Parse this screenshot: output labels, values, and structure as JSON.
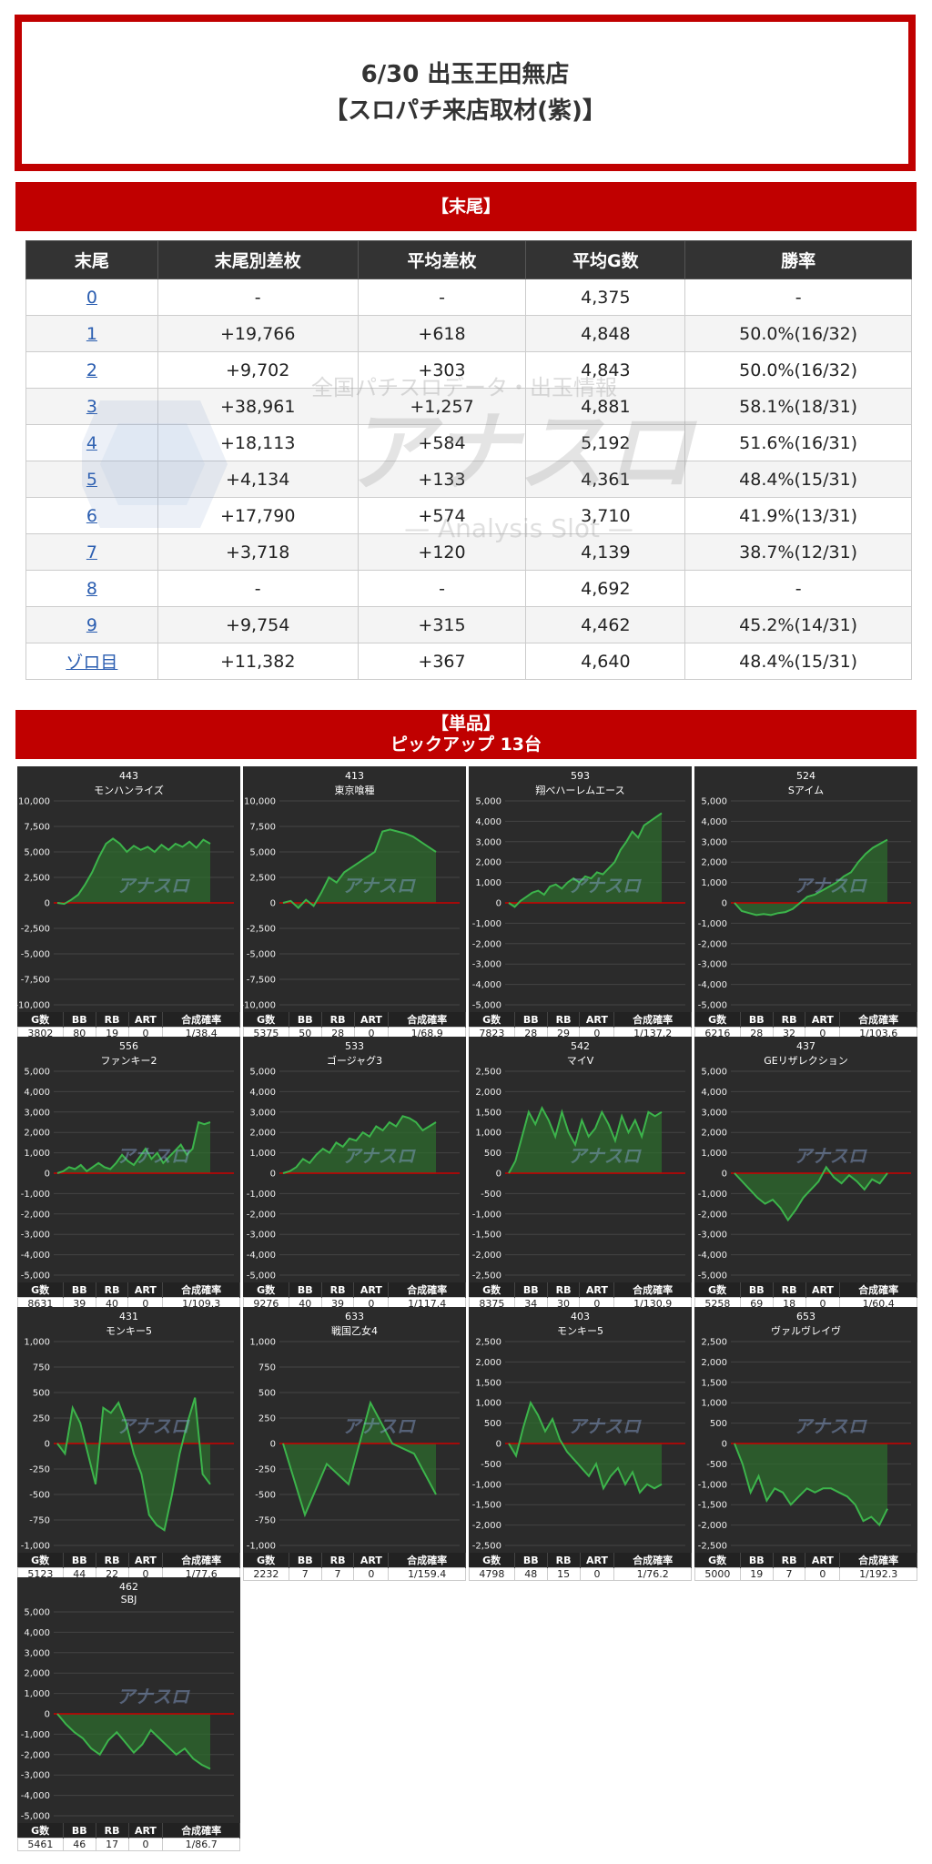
{
  "header": {
    "title_line1": "6/30 出玉王田無店",
    "title_line2": "【スロパチ来店取材(紫)】"
  },
  "section_matsubi": {
    "title": "【末尾】",
    "columns": [
      "末尾",
      "末尾別差枚",
      "平均差枚",
      "平均G数",
      "勝率"
    ],
    "rows": [
      [
        "0",
        "-",
        "-",
        "4,375",
        "-"
      ],
      [
        "1",
        "+19,766",
        "+618",
        "4,848",
        "50.0%(16/32)"
      ],
      [
        "2",
        "+9,702",
        "+303",
        "4,843",
        "50.0%(16/32)"
      ],
      [
        "3",
        "+38,961",
        "+1,257",
        "4,881",
        "58.1%(18/31)"
      ],
      [
        "4",
        "+18,113",
        "+584",
        "5,192",
        "51.6%(16/31)"
      ],
      [
        "5",
        "+4,134",
        "+133",
        "4,361",
        "48.4%(15/31)"
      ],
      [
        "6",
        "+17,790",
        "+574",
        "3,710",
        "41.9%(13/31)"
      ],
      [
        "7",
        "+3,718",
        "+120",
        "4,139",
        "38.7%(12/31)"
      ],
      [
        "8",
        "-",
        "-",
        "4,692",
        "-"
      ],
      [
        "9",
        "+9,754",
        "+315",
        "4,462",
        "45.2%(14/31)"
      ],
      [
        "ゾロ目",
        "+11,382",
        "+367",
        "4,640",
        "48.4%(15/31)"
      ]
    ]
  },
  "watermark": {
    "tagline": "全国パチスロデータ・出玉情報",
    "logo": "アナスロ",
    "sub": "— Analysis Slot —"
  },
  "section_pickup": {
    "title": "【単品】",
    "subtitle": "ピックアップ 13台"
  },
  "colors": {
    "accent": "#c00000",
    "card_bg": "#2b2b2b",
    "line": "#3cb44b",
    "fill": "#2e6b2e",
    "zero_line": "#cc0000"
  },
  "stats_headers": [
    "G数",
    "BB",
    "RB",
    "ART",
    "合成確率"
  ],
  "chart_data": [
    {
      "type": "area",
      "number": "443",
      "name": "モンハンライズ",
      "ylim": [
        -10000,
        10000
      ],
      "ticks": [
        "10,000",
        "7,500",
        "5,000",
        "2,500",
        "0",
        "-2,500",
        "-5,000",
        "-7,500",
        "-10,000"
      ],
      "values": [
        0,
        -100,
        300,
        800,
        1800,
        3000,
        4500,
        5800,
        6300,
        5800,
        5000,
        5600,
        5200,
        5500,
        5000,
        5700,
        5200,
        5800,
        5500,
        6000,
        5400,
        6200,
        5800
      ],
      "stats": [
        "3802",
        "80",
        "19",
        "0",
        "1/38.4"
      ]
    },
    {
      "type": "area",
      "number": "413",
      "name": "東京喰種",
      "ylim": [
        -10000,
        10000
      ],
      "ticks": [
        "10,000",
        "7,500",
        "5,000",
        "2,500",
        "0",
        "-2,500",
        "-5,000",
        "-7,500",
        "-10,000"
      ],
      "values": [
        0,
        200,
        -500,
        300,
        -300,
        1000,
        2500,
        2000,
        3000,
        3500,
        4000,
        4500,
        5000,
        7000,
        7200,
        7000,
        6800,
        6500,
        6000,
        5500,
        5000
      ],
      "stats": [
        "5375",
        "50",
        "28",
        "0",
        "1/68.9"
      ]
    },
    {
      "type": "area",
      "number": "593",
      "name": "翔べハーレムエース",
      "ylim": [
        -5000,
        5000
      ],
      "ticks": [
        "5,000",
        "4,000",
        "3,000",
        "2,000",
        "1,000",
        "0",
        "-1,000",
        "-2,000",
        "-3,000",
        "-4,000",
        "-5,000"
      ],
      "values": [
        0,
        -200,
        100,
        300,
        500,
        600,
        400,
        800,
        900,
        700,
        1000,
        1200,
        1000,
        1300,
        1200,
        1500,
        1400,
        1700,
        2000,
        2600,
        3000,
        3500,
        3200,
        3800,
        4000,
        4200,
        4400
      ],
      "stats": [
        "7823",
        "28",
        "29",
        "0",
        "1/137.2"
      ]
    },
    {
      "type": "area",
      "number": "524",
      "name": "Sアイム",
      "ylim": [
        -5000,
        5000
      ],
      "ticks": [
        "5,000",
        "4,000",
        "3,000",
        "2,000",
        "1,000",
        "0",
        "-1,000",
        "-2,000",
        "-3,000",
        "-4,000",
        "-5,000"
      ],
      "values": [
        0,
        -400,
        -500,
        -600,
        -550,
        -600,
        -500,
        -450,
        -300,
        0,
        300,
        400,
        600,
        800,
        1000,
        1300,
        1500,
        2000,
        2400,
        2700,
        2900,
        3100
      ],
      "stats": [
        "6216",
        "28",
        "32",
        "0",
        "1/103.6"
      ]
    },
    {
      "type": "area",
      "number": "556",
      "name": "ファンキー2",
      "ylim": [
        -5000,
        5000
      ],
      "ticks": [
        "5,000",
        "4,000",
        "3,000",
        "2,000",
        "1,000",
        "0",
        "-1,000",
        "-2,000",
        "-3,000",
        "-4,000",
        "-5,000"
      ],
      "values": [
        0,
        100,
        300,
        200,
        400,
        100,
        300,
        500,
        300,
        200,
        500,
        900,
        600,
        400,
        800,
        1200,
        700,
        1000,
        500,
        800,
        1100,
        1400,
        900,
        1200,
        2500,
        2400,
        2500
      ],
      "stats": [
        "8631",
        "39",
        "40",
        "0",
        "1/109.3"
      ]
    },
    {
      "type": "area",
      "number": "533",
      "name": "ゴージャグ3",
      "ylim": [
        -5000,
        5000
      ],
      "ticks": [
        "5,000",
        "4,000",
        "3,000",
        "2,000",
        "1,000",
        "0",
        "-1,000",
        "-2,000",
        "-3,000",
        "-4,000",
        "-5,000"
      ],
      "values": [
        0,
        100,
        300,
        700,
        500,
        900,
        1200,
        1000,
        1500,
        1300,
        1700,
        1600,
        2000,
        1800,
        2300,
        2100,
        2500,
        2300,
        2800,
        2700,
        2500,
        2100,
        2300,
        2500
      ],
      "stats": [
        "9276",
        "40",
        "39",
        "0",
        "1/117.4"
      ]
    },
    {
      "type": "area",
      "number": "542",
      "name": "マイV",
      "ylim": [
        -2500,
        2500
      ],
      "ticks": [
        "2,500",
        "2,000",
        "1,500",
        "1,000",
        "500",
        "0",
        "-500",
        "-1,000",
        "-1,500",
        "-2,000",
        "-2,500"
      ],
      "values": [
        0,
        300,
        900,
        1500,
        1200,
        1600,
        1300,
        900,
        1500,
        1000,
        700,
        1300,
        900,
        1100,
        1500,
        1200,
        800,
        1400,
        1000,
        1300,
        900,
        1500,
        1400,
        1500
      ],
      "stats": [
        "8375",
        "34",
        "30",
        "0",
        "1/130.9"
      ]
    },
    {
      "type": "area",
      "number": "437",
      "name": "GEリザレクション",
      "ylim": [
        -5000,
        5000
      ],
      "ticks": [
        "5,000",
        "4,000",
        "3,000",
        "2,000",
        "1,000",
        "0",
        "-1,000",
        "-2,000",
        "-3,000",
        "-4,000",
        "-5,000"
      ],
      "values": [
        0,
        -400,
        -800,
        -1200,
        -1500,
        -1300,
        -1700,
        -2300,
        -1800,
        -1200,
        -800,
        -400,
        300,
        -200,
        -500,
        -100,
        -400,
        -800,
        -300,
        -500,
        0
      ],
      "stats": [
        "5258",
        "69",
        "18",
        "0",
        "1/60.4"
      ]
    },
    {
      "type": "area",
      "number": "431",
      "name": "モンキー5",
      "ylim": [
        -1000,
        1000
      ],
      "ticks": [
        "1,000",
        "750",
        "500",
        "250",
        "0",
        "-250",
        "-500",
        "-750",
        "-1,000"
      ],
      "values": [
        0,
        -100,
        350,
        200,
        -100,
        -400,
        350,
        300,
        400,
        200,
        -100,
        -300,
        -700,
        -800,
        -850,
        -500,
        -100,
        200,
        450,
        -300,
        -400
      ],
      "stats": [
        "5123",
        "44",
        "22",
        "0",
        "1/77.6"
      ]
    },
    {
      "type": "area",
      "number": "633",
      "name": "戦国乙女4",
      "ylim": [
        -1000,
        1000
      ],
      "ticks": [
        "1,000",
        "750",
        "500",
        "250",
        "0",
        "-250",
        "-500",
        "-750",
        "-1,000"
      ],
      "values": [
        0,
        -700,
        -200,
        -400,
        400,
        0,
        -100,
        -500
      ],
      "stats": [
        "2232",
        "7",
        "7",
        "0",
        "1/159.4"
      ]
    },
    {
      "type": "area",
      "number": "403",
      "name": "モンキー5",
      "ylim": [
        -2500,
        2500
      ],
      "ticks": [
        "2,500",
        "2,000",
        "1,500",
        "1,000",
        "500",
        "0",
        "-500",
        "-1,000",
        "-1,500",
        "-2,000",
        "-2,500"
      ],
      "values": [
        0,
        -300,
        400,
        1000,
        700,
        300,
        600,
        100,
        -200,
        -400,
        -600,
        -800,
        -500,
        -1100,
        -800,
        -600,
        -1000,
        -700,
        -1200,
        -1000,
        -1100,
        -1000
      ],
      "stats": [
        "4798",
        "48",
        "15",
        "0",
        "1/76.2"
      ]
    },
    {
      "type": "area",
      "number": "653",
      "name": "ヴァルヴレイヴ",
      "ylim": [
        -2500,
        2500
      ],
      "ticks": [
        "2,500",
        "2,000",
        "1,500",
        "1,000",
        "500",
        "0",
        "-500",
        "-1,000",
        "-1,500",
        "-2,000",
        "-2,500"
      ],
      "values": [
        0,
        -500,
        -1200,
        -800,
        -1400,
        -1100,
        -1200,
        -1500,
        -1300,
        -1100,
        -1200,
        -1100,
        -1100,
        -1200,
        -1300,
        -1500,
        -1900,
        -1800,
        -2000,
        -1600
      ],
      "stats": [
        "5000",
        "19",
        "7",
        "0",
        "1/192.3"
      ]
    },
    {
      "type": "area",
      "number": "462",
      "name": "SBJ",
      "ylim": [
        -5000,
        5000
      ],
      "ticks": [
        "5,000",
        "4,000",
        "3,000",
        "2,000",
        "1,000",
        "0",
        "-1,000",
        "-2,000",
        "-3,000",
        "-4,000",
        "-5,000"
      ],
      "values": [
        0,
        -500,
        -900,
        -1200,
        -1700,
        -2000,
        -1300,
        -900,
        -1400,
        -1900,
        -1500,
        -800,
        -1200,
        -1600,
        -2000,
        -1700,
        -2200,
        -2500,
        -2700
      ],
      "stats": [
        "5461",
        "46",
        "17",
        "0",
        "1/86.7"
      ]
    }
  ]
}
